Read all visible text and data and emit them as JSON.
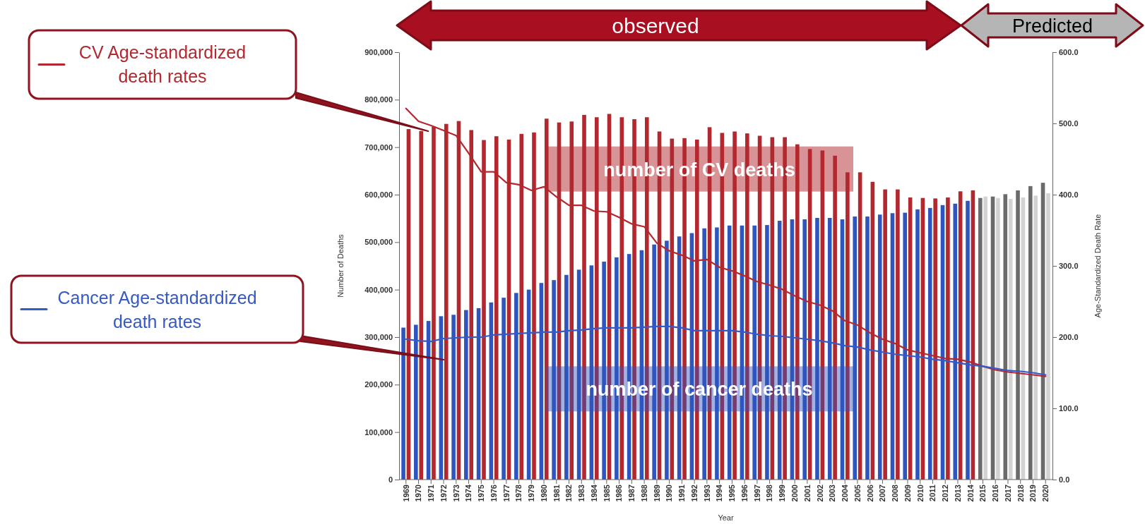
{
  "chart_data": {
    "type": "bar",
    "xlabel": "Year",
    "ylabel": "Number of Deaths",
    "y2label": "Age-Standardized Death Rate",
    "annotations": [
      "observed",
      "Predicted"
    ],
    "legend": "left",
    "categories": [
      "1969",
      "1970",
      "1971",
      "1972",
      "1973",
      "1974",
      "1975",
      "1976",
      "1977",
      "1978",
      "1979",
      "1980",
      "1981",
      "1982",
      "1983",
      "1984",
      "1985",
      "1986",
      "1987",
      "1988",
      "1989",
      "1990",
      "1991",
      "1992",
      "1993",
      "1994",
      "1995",
      "1996",
      "1997",
      "1998",
      "1999",
      "2000",
      "2001",
      "2002",
      "2003",
      "2004",
      "2005",
      "2006",
      "2007",
      "2008",
      "2009",
      "2010",
      "2011",
      "2012",
      "2013",
      "2014",
      "2015",
      "2016",
      "2017",
      "2018",
      "2019",
      "2020"
    ],
    "ylim": [
      0,
      900000
    ],
    "yticks": [
      {
        "value": 0,
        "label": "0"
      },
      {
        "value": 100000,
        "label": "100,000"
      },
      {
        "value": 200000,
        "label": "200,000"
      },
      {
        "value": 300000,
        "label": "300,000"
      },
      {
        "value": 400000,
        "label": "400,000"
      },
      {
        "value": 500000,
        "label": "500,000"
      },
      {
        "value": 600000,
        "label": "600,000"
      },
      {
        "value": 700000,
        "label": "700,000"
      },
      {
        "value": 800000,
        "label": "800,000"
      },
      {
        "value": 900000,
        "label": "900,000"
      }
    ],
    "y2lim": [
      0,
      600
    ],
    "y2ticks": [
      {
        "value": 0,
        "label": "0.0"
      },
      {
        "value": 100,
        "label": "100.0"
      },
      {
        "value": 200,
        "label": "200.0"
      },
      {
        "value": 300,
        "label": "300.0"
      },
      {
        "value": 400,
        "label": "400.0"
      },
      {
        "value": 500,
        "label": "500.0"
      },
      {
        "value": 600,
        "label": "600.0"
      }
    ],
    "series": [
      {
        "name": "number of cancer deaths",
        "color": "#2f55be",
        "colors": [
          "#2f55be",
          "#2f55be",
          "#2f55be",
          "#2f55be",
          "#2f55be",
          "#2f55be",
          "#2f55be",
          "#2f55be",
          "#2f55be",
          "#2f55be",
          "#2f55be",
          "#2f55be",
          "#2f55be",
          "#2f55be",
          "#2f55be",
          "#2f55be",
          "#2f55be",
          "#2f55be",
          "#2f55be",
          "#2f55be",
          "#2f55be",
          "#2f55be",
          "#2f55be",
          "#2f55be",
          "#2f55be",
          "#2f55be",
          "#2f55be",
          "#2f55be",
          "#2f55be",
          "#2f55be",
          "#2f55be",
          "#2f55be",
          "#2f55be",
          "#2f55be",
          "#2f55be",
          "#2f55be",
          "#2f55be",
          "#2f55be",
          "#2f55be",
          "#2f55be",
          "#2f55be",
          "#2f55be",
          "#2f55be",
          "#2f55be",
          "#2f55be",
          "#2f55be",
          "#6b6b6b",
          "#6b6b6b",
          "#6b6b6b",
          "#6b6b6b",
          "#6b6b6b",
          "#6b6b6b"
        ],
        "values": [
          320000,
          326000,
          334000,
          344000,
          347000,
          357000,
          361000,
          373000,
          383000,
          393000,
          400000,
          414000,
          420000,
          431000,
          442000,
          451000,
          459000,
          468000,
          475000,
          483000,
          495000,
          503000,
          512000,
          519000,
          529000,
          531000,
          535000,
          535000,
          535000,
          536000,
          545000,
          548000,
          548000,
          551000,
          551000,
          548000,
          554000,
          554000,
          558000,
          561000,
          562000,
          569000,
          572000,
          578000,
          581000,
          587000,
          593000,
          596000,
          601000,
          609000,
          618000,
          625000
        ]
      },
      {
        "name": "number of CV deaths",
        "color": "#b2282e",
        "colors": [
          "#b2282e",
          "#b2282e",
          "#b2282e",
          "#b2282e",
          "#b2282e",
          "#b2282e",
          "#b2282e",
          "#b2282e",
          "#b2282e",
          "#b2282e",
          "#b2282e",
          "#b2282e",
          "#b2282e",
          "#b2282e",
          "#b2282e",
          "#b2282e",
          "#b2282e",
          "#b2282e",
          "#b2282e",
          "#b2282e",
          "#b2282e",
          "#b2282e",
          "#b2282e",
          "#b2282e",
          "#b2282e",
          "#b2282e",
          "#b2282e",
          "#b2282e",
          "#b2282e",
          "#b2282e",
          "#b2282e",
          "#b2282e",
          "#b2282e",
          "#b2282e",
          "#b2282e",
          "#b2282e",
          "#b2282e",
          "#b2282e",
          "#b2282e",
          "#b2282e",
          "#b2282e",
          "#b2282e",
          "#b2282e",
          "#b2282e",
          "#b2282e",
          "#b2282e",
          "#d3d3d3",
          "#d3d3d3",
          "#d3d3d3",
          "#d3d3d3",
          "#d3d3d3",
          "#d3d3d3"
        ],
        "values": [
          738000,
          734000,
          743000,
          749000,
          755000,
          736000,
          715000,
          723000,
          716000,
          728000,
          731000,
          760000,
          752000,
          754000,
          768000,
          763000,
          770000,
          763000,
          759000,
          763000,
          733000,
          718000,
          719000,
          716000,
          742000,
          730000,
          733000,
          729000,
          724000,
          721000,
          721000,
          706000,
          696000,
          693000,
          682000,
          647000,
          647000,
          627000,
          611000,
          611000,
          594000,
          593000,
          592000,
          594000,
          607000,
          609000,
          596000,
          593000,
          591000,
          594000,
          598000,
          603000
        ]
      },
      {
        "name": "CV Age-standardized death rates",
        "type": "line",
        "axis": "y2",
        "color": "#b3282f",
        "values": [
          521,
          503,
          497,
          490,
          483,
          458,
          432,
          432,
          417,
          414,
          406,
          411,
          397,
          385,
          385,
          377,
          376,
          368,
          359,
          355,
          332,
          321,
          315,
          307,
          309,
          298,
          293,
          286,
          278,
          273,
          267,
          258,
          250,
          245,
          237,
          223,
          217,
          206,
          197,
          191,
          182,
          178,
          174,
          170,
          169,
          165,
          159,
          154,
          151,
          149,
          147,
          145
        ]
      },
      {
        "name": "Cancer Age-standardized death rates",
        "type": "line",
        "axis": "y2",
        "color": "#3559c6",
        "values": [
          197,
          195,
          194,
          198,
          199,
          200,
          200,
          203,
          204,
          205,
          206,
          207,
          207,
          209,
          210,
          212,
          213,
          213,
          213,
          214,
          215,
          215,
          213,
          209,
          209,
          209,
          209,
          207,
          204,
          202,
          201,
          199,
          197,
          195,
          192,
          188,
          186,
          182,
          179,
          176,
          174,
          172,
          169,
          167,
          164,
          161,
          159,
          156,
          153,
          152,
          150,
          147
        ]
      }
    ]
  }
}
